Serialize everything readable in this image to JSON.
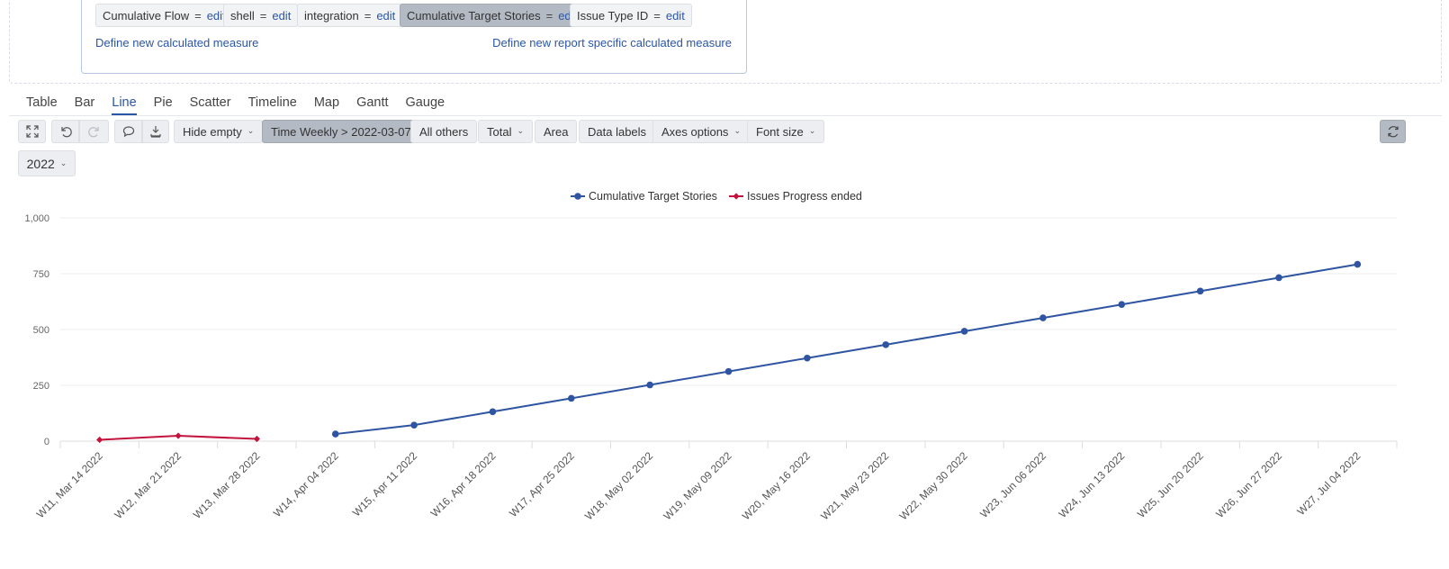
{
  "measures": {
    "chips": [
      {
        "name": "Cumulative Flow",
        "edit": "edit",
        "active": false
      },
      {
        "name": "shell",
        "edit": "edit",
        "active": false
      },
      {
        "name": "integration",
        "edit": "edit",
        "active": false
      },
      {
        "name": "Cumulative Target Stories",
        "edit": "edit",
        "active": true
      },
      {
        "name": "Issue Type ID",
        "edit": "edit",
        "active": false
      }
    ],
    "eq": "=",
    "define_new": "Define new calculated measure",
    "define_report_specific": "Define new report specific calculated measure"
  },
  "tabs": [
    "Table",
    "Bar",
    "Line",
    "Pie",
    "Scatter",
    "Timeline",
    "Map",
    "Gantt",
    "Gauge"
  ],
  "active_tab": "Line",
  "toolbar": {
    "icons": [
      "fullscreen-icon",
      "undo-icon",
      "redo-icon",
      "comment-icon",
      "export-icon",
      "refresh-icon"
    ],
    "hide_empty": "Hide empty",
    "time_filter": "Time Weekly > 2022-03-07",
    "all_others": "All others",
    "total": "Total",
    "area": "Area",
    "data_labels": "Data labels",
    "axes_options": "Axes options",
    "font_size": "Font size"
  },
  "year_select": "2022",
  "colors": {
    "blue": "#2f55a2",
    "red": "#c2143c",
    "grid": "#eeeeee",
    "accent": "#2a56a8"
  },
  "chart_data": {
    "type": "line",
    "title": "",
    "xlabel": "",
    "ylabel": "",
    "ylim": [
      0,
      1000
    ],
    "yticks": [
      0,
      250,
      500,
      750,
      1000
    ],
    "ytick_labels": [
      "0",
      "250",
      "500",
      "750",
      "1,000"
    ],
    "grid": true,
    "legend_position": "top-center",
    "categories": [
      "W11, Mar 14 2022",
      "W12, Mar 21 2022",
      "W13, Mar 28 2022",
      "W14, Apr 04 2022",
      "W15, Apr 11 2022",
      "W16, Apr 18 2022",
      "W17, Apr 25 2022",
      "W18, May 02 2022",
      "W19, May 09 2022",
      "W20, May 16 2022",
      "W21, May 23 2022",
      "W22, May 30 2022",
      "W23, Jun 06 2022",
      "W24, Jun 13 2022",
      "W25, Jun 20 2022",
      "W26, Jun 27 2022",
      "W27, Jul 04 2022"
    ],
    "series": [
      {
        "name": "Cumulative Target Stories",
        "color": "#2f55a2",
        "marker": "circle",
        "values": [
          null,
          null,
          null,
          32,
          72,
          132,
          192,
          252,
          312,
          372,
          432,
          492,
          552,
          612,
          672,
          732,
          792
        ]
      },
      {
        "name": "Issues Progress ended",
        "color": "#c2143c",
        "marker": "diamond",
        "values": [
          6,
          24,
          10,
          null,
          null,
          null,
          null,
          null,
          null,
          null,
          null,
          null,
          null,
          null,
          null,
          null,
          null
        ]
      }
    ]
  }
}
